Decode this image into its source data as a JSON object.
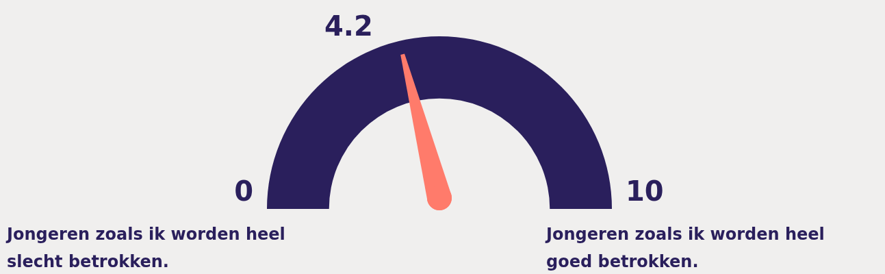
{
  "chart_data": {
    "type": "other",
    "values": [
      4.2
    ],
    "data_labels": true,
    "color": "#2a1f5c",
    "colors": [
      "#ff7b6b"
    ],
    "annotations": [
      "0",
      "10",
      "Jongeren zoals ik worden heel slecht betrokken.",
      "Jongeren zoals ik worden heel goed betrokken."
    ]
  }
}
